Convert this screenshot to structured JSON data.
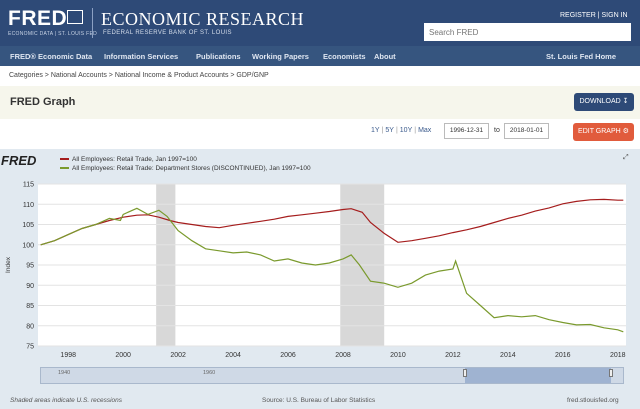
{
  "header": {
    "logo": "FRED",
    "logo_sub": "ECONOMIC DATA | ST. LOUIS FED",
    "title": "ECONOMIC RESEARCH",
    "subtitle": "FEDERAL RESERVE BANK OF ST. LOUIS",
    "register": "REGISTER",
    "sign_in": "SIGN IN",
    "search_placeholder": "Search FRED"
  },
  "nav": [
    "FRED® Economic Data",
    "Information Services",
    "Publications",
    "Working Papers",
    "Economists",
    "About",
    "St. Louis Fed Home"
  ],
  "breadcrumb": "Categories > National Accounts > National Income & Product Accounts > GDP/GNP",
  "page_title": "FRED Graph",
  "download_label": "DOWNLOAD",
  "ranges": [
    "1Y",
    "5Y",
    "10Y",
    "Max"
  ],
  "date_from": "1996-12-31",
  "date_to_label": "to",
  "date_to": "2018-01-01",
  "edit_label": "EDIT GRAPH",
  "graph_logo": "FRED",
  "colors": {
    "red": "#a51d1d",
    "green": "#7a9a2d",
    "recession": "#d8d8d8"
  },
  "footer": {
    "recession_note": "Shaded areas indicate U.S. recessions",
    "source": "Source: U.S. Bureau of Labor Statistics",
    "site": "fred.stlouisfed.org"
  },
  "navigator_labels": [
    "1940",
    "1960"
  ],
  "chart_data": {
    "type": "line",
    "title": "",
    "xlabel": "",
    "ylabel": "Index",
    "xlim": [
      1996.9,
      2018.3
    ],
    "ylim": [
      75,
      115
    ],
    "yticks": [
      75,
      80,
      85,
      90,
      95,
      100,
      105,
      110,
      115
    ],
    "xticks": [
      1998,
      2000,
      2002,
      2004,
      2006,
      2008,
      2010,
      2012,
      2014,
      2016,
      2018
    ],
    "recessions": [
      [
        2001.2,
        2001.9
      ],
      [
        2007.9,
        2009.5
      ]
    ],
    "series": [
      {
        "name": "All Employees: Retail Trade, Jan 1997=100",
        "color": "#a51d1d",
        "x": [
          1997,
          1997.5,
          1998,
          1998.5,
          1999,
          1999.5,
          2000,
          2000.5,
          2000.9,
          2001.3,
          2001.7,
          2002,
          2002.5,
          2003,
          2003.5,
          2004,
          2004.5,
          2005,
          2005.5,
          2006,
          2006.5,
          2007,
          2007.5,
          2008,
          2008.3,
          2008.7,
          2009,
          2009.5,
          2010,
          2010.5,
          2011,
          2011.5,
          2012,
          2012.5,
          2013,
          2013.5,
          2014,
          2014.5,
          2015,
          2015.5,
          2016,
          2016.5,
          2017,
          2017.5,
          2018,
          2018.2
        ],
        "values": [
          100,
          101,
          102.5,
          104,
          105,
          106,
          106.8,
          107.3,
          107.4,
          106.8,
          106,
          105.5,
          105,
          104.5,
          104.2,
          104.8,
          105.3,
          105.8,
          106.3,
          107,
          107.4,
          107.8,
          108.2,
          108.7,
          108.9,
          108,
          105.5,
          102.8,
          100.6,
          101,
          101.6,
          102.2,
          103,
          103.7,
          104.5,
          105.5,
          106.5,
          107.3,
          108.3,
          109.1,
          110.1,
          110.7,
          111.1,
          111.2,
          111.0,
          111.0
        ]
      },
      {
        "name": "All Employees: Retail Trade: Department Stores (DISCONTINUED), Jan 1997=100",
        "color": "#7a9a2d",
        "x": [
          1997,
          1997.5,
          1998,
          1998.5,
          1999,
          1999.5,
          1999.9,
          2000,
          2000.5,
          2000.9,
          2001.3,
          2001.6,
          2002,
          2002.5,
          2003,
          2003.5,
          2004,
          2004.5,
          2005,
          2005.5,
          2006,
          2006.5,
          2007,
          2007.5,
          2008,
          2008.3,
          2008.6,
          2009,
          2009.5,
          2010,
          2010.5,
          2011,
          2011.5,
          2012,
          2012.1,
          2012.5,
          2013,
          2013.5,
          2014,
          2014.5,
          2015,
          2015.5,
          2016,
          2016.5,
          2017,
          2017.5,
          2018,
          2018.2
        ],
        "values": [
          100,
          101,
          102.5,
          104,
          105,
          106.5,
          106,
          107.5,
          109,
          107.5,
          108.5,
          107,
          103.5,
          101,
          99,
          98.5,
          98,
          98.2,
          97.5,
          96,
          96.5,
          95.5,
          95,
          95.5,
          96.5,
          97.5,
          95,
          91,
          90.5,
          89.5,
          90.5,
          92.5,
          93.5,
          94,
          96,
          88,
          85,
          82,
          82.5,
          82.2,
          82.5,
          81.5,
          80.8,
          80.2,
          80.3,
          79.5,
          79,
          78.5
        ]
      }
    ]
  }
}
